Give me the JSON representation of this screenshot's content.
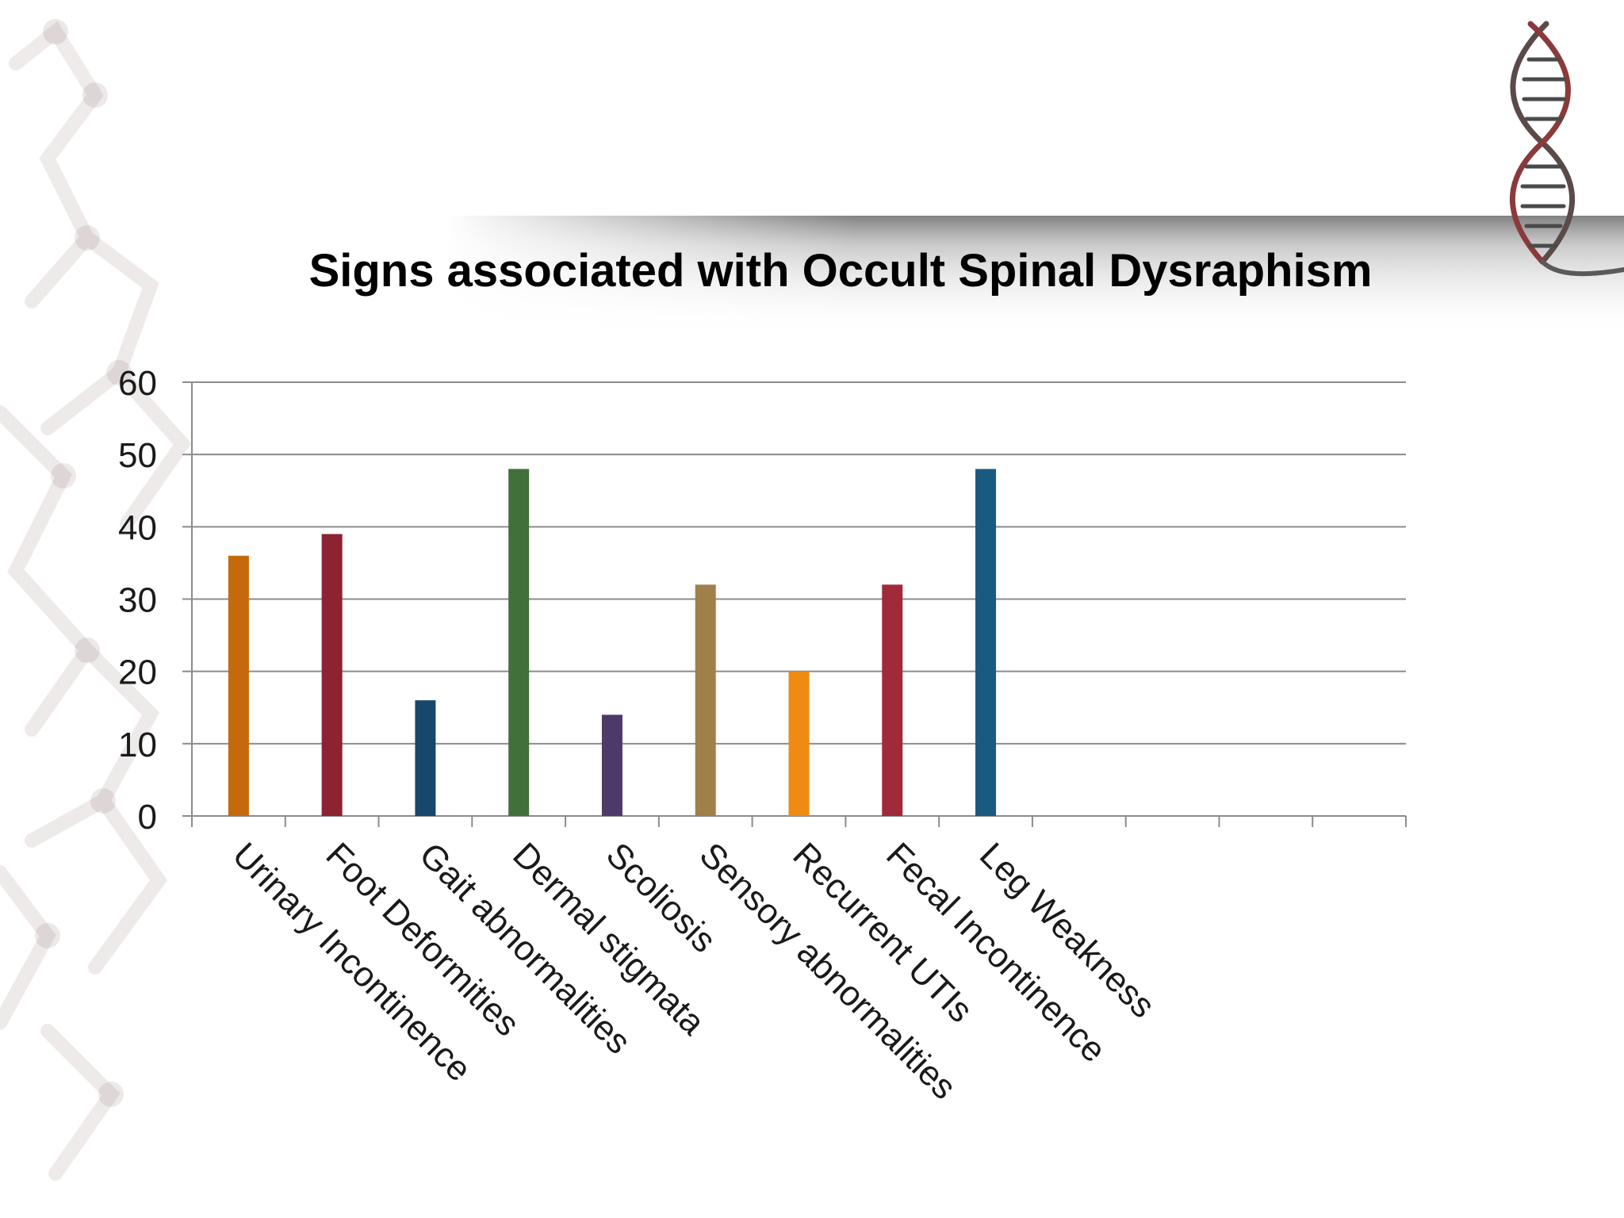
{
  "slide": {
    "background": "#ffffff",
    "decorations": [
      "molecule-chain-left",
      "dna-helix-top-right",
      "horizontal-shadow-band"
    ]
  },
  "chart_data": {
    "type": "bar",
    "title": "Signs associated with Occult Spinal Dysraphism",
    "xlabel": "",
    "ylabel": "",
    "ylim": [
      0,
      60
    ],
    "yticks": [
      0,
      10,
      20,
      30,
      40,
      50,
      60
    ],
    "grid": true,
    "legend": "none",
    "category_slots": 13,
    "categories": [
      "Urinary Incontinence",
      "Foot Deformities",
      "Gait abnormalities",
      "Dermal stigmata",
      "Scoliosis",
      "Sensory abnormalities",
      "Recurrent UTIs",
      "Fecal Incontinence",
      "Leg Weakness"
    ],
    "values": [
      36,
      39,
      16,
      48,
      14,
      32,
      20,
      32,
      48
    ],
    "colors": [
      "#c46a0c",
      "#8b2332",
      "#17486b",
      "#41703a",
      "#4e3a68",
      "#a0804a",
      "#ef8a12",
      "#a02a3a",
      "#1a5a80"
    ]
  }
}
